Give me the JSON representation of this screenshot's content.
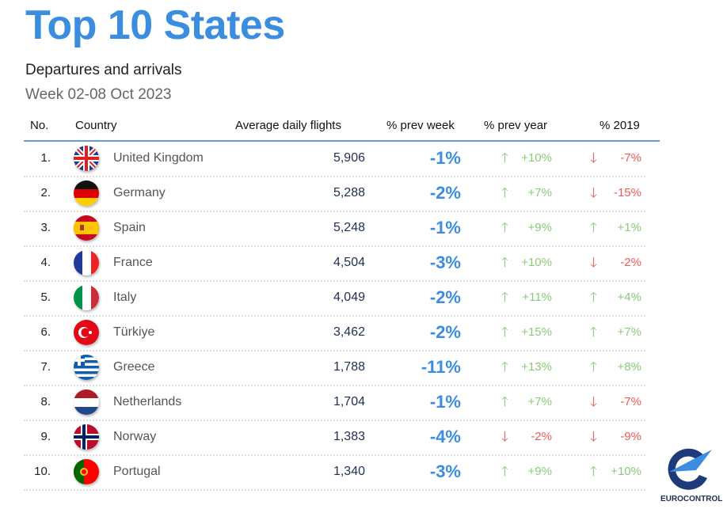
{
  "title": "Top 10 States",
  "subtitle": "Departures and arrivals",
  "week": "Week 02-08 Oct 2023",
  "headers": {
    "no": "No.",
    "country": "Country",
    "flights": "Average daily flights",
    "prev_week": "% prev week",
    "prev_year": "% prev year",
    "y2019": "% 2019"
  },
  "colors": {
    "accent": "#3b8de0",
    "up": "#8acb77",
    "down": "#f05a5a"
  },
  "rows": [
    {
      "no": "1.",
      "country": "United Kingdom",
      "flag": "gb",
      "flights": "5,906",
      "prev_week": "-1%",
      "prev_year": "+10%",
      "prev_year_dir": "up",
      "y2019": "-7%",
      "y2019_dir": "down"
    },
    {
      "no": "2.",
      "country": "Germany",
      "flag": "de",
      "flights": "5,288",
      "prev_week": "-2%",
      "prev_year": "+7%",
      "prev_year_dir": "up",
      "y2019": "-15%",
      "y2019_dir": "down"
    },
    {
      "no": "3.",
      "country": "Spain",
      "flag": "es",
      "flights": "5,248",
      "prev_week": "-1%",
      "prev_year": "+9%",
      "prev_year_dir": "up",
      "y2019": "+1%",
      "y2019_dir": "up"
    },
    {
      "no": "4.",
      "country": "France",
      "flag": "fr",
      "flights": "4,504",
      "prev_week": "-3%",
      "prev_year": "+10%",
      "prev_year_dir": "up",
      "y2019": "-2%",
      "y2019_dir": "down"
    },
    {
      "no": "5.",
      "country": "Italy",
      "flag": "it",
      "flights": "4,049",
      "prev_week": "-2%",
      "prev_year": "+11%",
      "prev_year_dir": "up",
      "y2019": "+4%",
      "y2019_dir": "up"
    },
    {
      "no": "6.",
      "country": "Türkiye",
      "flag": "tr",
      "flights": "3,462",
      "prev_week": "-2%",
      "prev_year": "+15%",
      "prev_year_dir": "up",
      "y2019": "+7%",
      "y2019_dir": "up"
    },
    {
      "no": "7.",
      "country": "Greece",
      "flag": "gr",
      "flights": "1,788",
      "prev_week": "-11%",
      "prev_year": "+13%",
      "prev_year_dir": "up",
      "y2019": "+8%",
      "y2019_dir": "up"
    },
    {
      "no": "8.",
      "country": "Netherlands",
      "flag": "nl",
      "flights": "1,704",
      "prev_week": "-1%",
      "prev_year": "+7%",
      "prev_year_dir": "up",
      "y2019": "-7%",
      "y2019_dir": "down"
    },
    {
      "no": "9.",
      "country": "Norway",
      "flag": "no",
      "flights": "1,383",
      "prev_week": "-4%",
      "prev_year": "-2%",
      "prev_year_dir": "down",
      "y2019": "-9%",
      "y2019_dir": "down"
    },
    {
      "no": "10.",
      "country": "Portugal",
      "flag": "pt",
      "flights": "1,340",
      "prev_week": "-3%",
      "prev_year": "+9%",
      "prev_year_dir": "up",
      "y2019": "+10%",
      "y2019_dir": "up"
    }
  ],
  "logo": "EUROCONTROL"
}
